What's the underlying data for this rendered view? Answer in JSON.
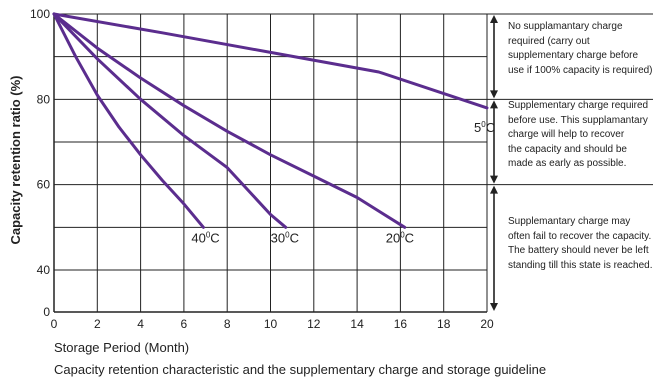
{
  "chart_data": {
    "type": "line",
    "title": "",
    "xlabel": "Storage Period (Month)",
    "ylabel": "Capacity retention ratio (%)",
    "xlim": [
      0,
      20
    ],
    "ylim": [
      0,
      100
    ],
    "xticks": [
      "0",
      "2",
      "4",
      "6",
      "8",
      "10",
      "12",
      "14",
      "16",
      "18",
      "20"
    ],
    "yticks": [
      "0",
      "40",
      "60",
      "80",
      "100"
    ],
    "grid": true,
    "line_color": "#5b2d8e",
    "series": [
      {
        "name": "5⁰C",
        "label_base": "5",
        "label_sup": "0",
        "label_end": "C",
        "points": [
          [
            0,
            100
          ],
          [
            5,
            95.6
          ],
          [
            10,
            91
          ],
          [
            15,
            86.4
          ],
          [
            20,
            78
          ]
        ]
      },
      {
        "name": "20⁰C",
        "label_base": "20",
        "label_sup": "0",
        "label_end": "C",
        "points": [
          [
            0,
            100
          ],
          [
            2,
            92
          ],
          [
            4,
            85
          ],
          [
            6,
            78.5
          ],
          [
            8,
            72.5
          ],
          [
            10,
            67
          ],
          [
            12,
            62
          ],
          [
            14,
            57
          ],
          [
            16.2,
            50
          ]
        ]
      },
      {
        "name": "30⁰C",
        "label_base": "30",
        "label_sup": "0",
        "label_end": "C",
        "points": [
          [
            0,
            100
          ],
          [
            2,
            89.5
          ],
          [
            4,
            80
          ],
          [
            6,
            71.5
          ],
          [
            8,
            64
          ],
          [
            10,
            53
          ],
          [
            10.7,
            50
          ]
        ]
      },
      {
        "name": "40⁰C",
        "label_base": "40",
        "label_sup": "0",
        "label_end": "C",
        "points": [
          [
            0,
            100
          ],
          [
            1,
            90
          ],
          [
            2,
            81
          ],
          [
            3,
            73.5
          ],
          [
            4,
            67
          ],
          [
            5,
            61
          ],
          [
            6,
            55.5
          ],
          [
            6.9,
            50
          ]
        ]
      }
    ]
  },
  "zones": [
    {
      "lines": [
        "No supplamantary charge",
        "required (carry out",
        "supplementary charge before",
        "use if 100% capacity is required)"
      ]
    },
    {
      "lines": [
        "Supplementary charge required",
        "before use. This supplamantary",
        "charge will help to recover",
        "the capacity and should be",
        "made as early as possible."
      ]
    },
    {
      "lines": [
        "Supplemantary charge may",
        "often fail to recover  the capacity.",
        "The battery should never be left",
        "standing till this state is reached."
      ]
    }
  ],
  "caption": "Capacity retention characteristic and the supplementary charge and storage guideline"
}
